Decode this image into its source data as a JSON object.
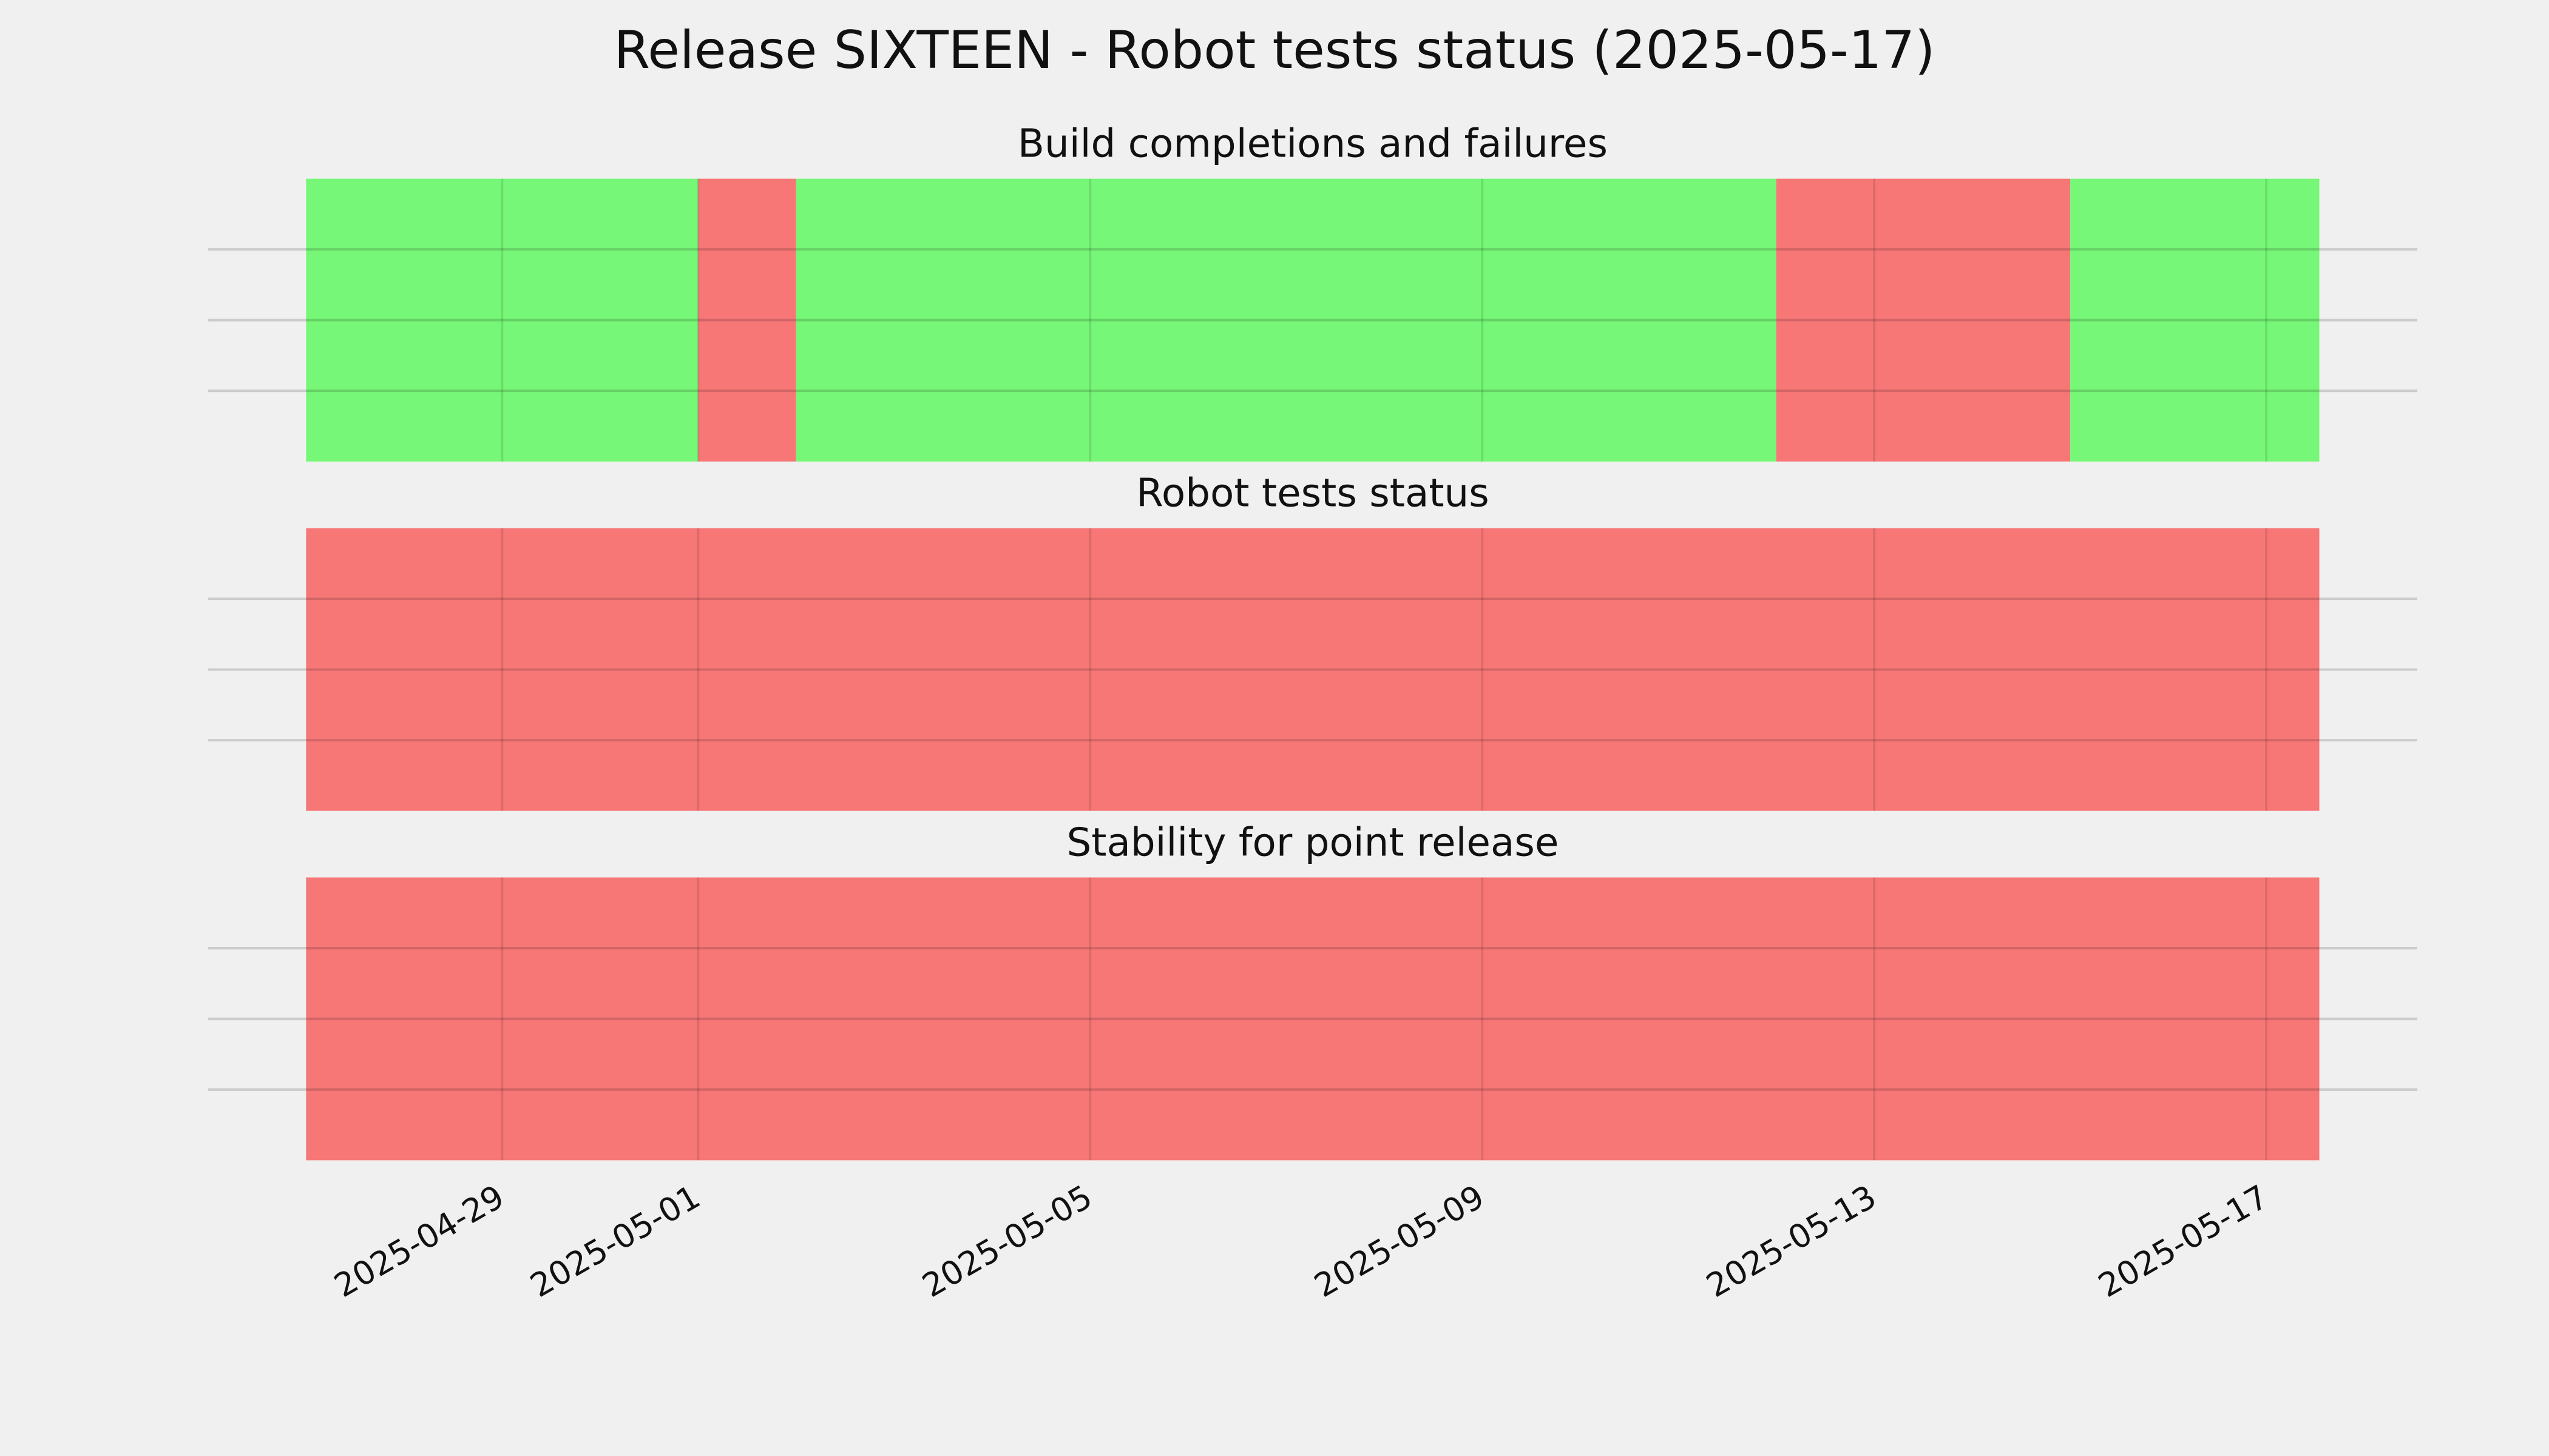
{
  "title": "Release SIXTEEN - Robot tests status (2025-05-17)",
  "chart_data": [
    {
      "type": "timeline",
      "title": "Build completions and failures",
      "segments": [
        {
          "start": "2025-04-27",
          "end": "2025-05-01",
          "color": "#77f777"
        },
        {
          "start": "2025-05-01",
          "end": "2025-05-02",
          "color": "#f77777"
        },
        {
          "start": "2025-05-02",
          "end": "2025-05-12",
          "color": "#77f777"
        },
        {
          "start": "2025-05-12",
          "end": "2025-05-15",
          "color": "#f77777"
        },
        {
          "start": "2025-05-15",
          "end": "2025-05-17T13:00",
          "color": "#77f777"
        }
      ],
      "xlim": [
        "2025-04-26",
        "2025-05-18T13:00"
      ],
      "xticks": [
        "2025-04-29",
        "2025-05-01",
        "2025-05-05",
        "2025-05-09",
        "2025-05-13",
        "2025-05-17"
      ],
      "ylim": [
        0,
        4
      ],
      "yticks": [
        1,
        2,
        3
      ],
      "grid": true
    },
    {
      "type": "timeline",
      "title": "Robot tests status",
      "segments": [
        {
          "start": "2025-04-27",
          "end": "2025-05-17T13:00",
          "color": "#f77777"
        }
      ],
      "xlim": [
        "2025-04-26",
        "2025-05-18T13:00"
      ],
      "xticks": [
        "2025-04-29",
        "2025-05-01",
        "2025-05-05",
        "2025-05-09",
        "2025-05-13",
        "2025-05-17"
      ],
      "ylim": [
        0,
        4
      ],
      "yticks": [
        1,
        2,
        3
      ],
      "grid": true
    },
    {
      "type": "timeline",
      "title": "Stability for point release",
      "segments": [
        {
          "start": "2025-04-27",
          "end": "2025-05-17T13:00",
          "color": "#f77777"
        }
      ],
      "xlim": [
        "2025-04-26",
        "2025-05-18T13:00"
      ],
      "xticks": [
        "2025-04-29",
        "2025-05-01",
        "2025-05-05",
        "2025-05-09",
        "2025-05-13",
        "2025-05-17"
      ],
      "ylim": [
        0,
        4
      ],
      "yticks": [
        1,
        2,
        3
      ],
      "grid": true
    }
  ]
}
